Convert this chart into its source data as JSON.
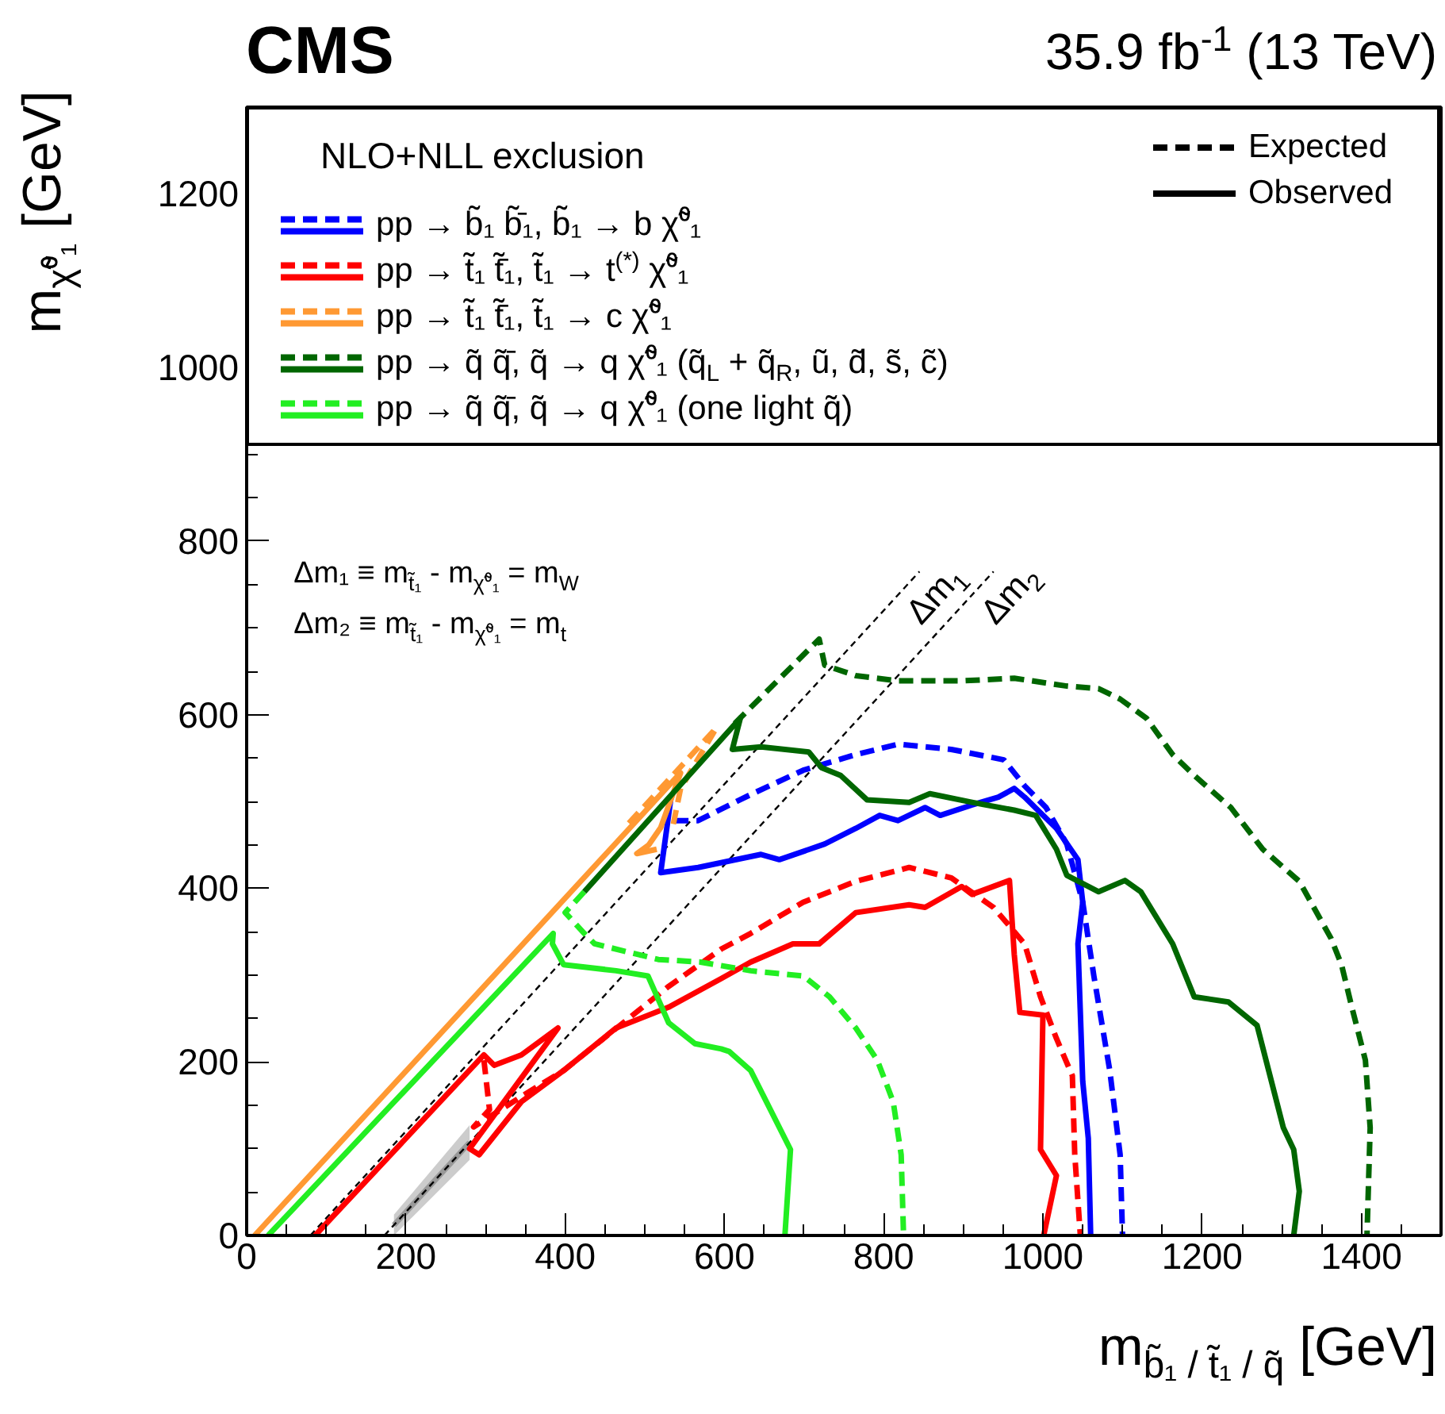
{
  "chart_data": {
    "type": "line",
    "title": "CMS",
    "subtitle": "35.9 fb$^{-1}$ (13 TeV)",
    "xlabel": "m$_{b̃₁ / t̃₁ / q̃}$ [GeV]",
    "ylabel": "m$_{χ̃⁰₁}$ [GeV]",
    "legend_title": "NLO+NLL exclusion",
    "xlim": [
      0,
      1500
    ],
    "ylim": [
      0,
      1300
    ],
    "xticks": [
      0,
      200,
      400,
      600,
      800,
      1000,
      1200,
      1400
    ],
    "yticks": [
      0,
      200,
      400,
      600,
      800,
      1000,
      1200
    ],
    "grid": false,
    "legend": "top",
    "annotations": [
      "Δm₁ ≡ m$_{t̃₁}$ - m$_{χ̃⁰₁}$ = m$_{W}$",
      "Δm₂ ≡ m$_{t̃₁}$ - m$_{χ̃⁰₁}$ = m$_{t}$"
    ],
    "series": [
      {
        "color": "#999999",
        "line_style": "solid",
        "x": [
          185,
          280
        ],
        "values": [
          12,
          107
        ],
        "lower": [
          0,
          87
        ],
        "upper": [
          24,
          127
        ]
      },
      {
        "name": "Δm$_{1}$",
        "color": "#000000",
        "line_style": "dotted",
        "x": [
          80,
          845
        ],
        "values": [
          0,
          765
        ]
      },
      {
        "name": "Δm$_{2}$",
        "color": "#000000",
        "line_style": "dotted",
        "x": [
          173,
          938
        ],
        "values": [
          0,
          765
        ]
      },
      {
        "name": "Expected",
        "color": "#000000",
        "line_style": "dashed"
      },
      {
        "name": "Observed",
        "color": "#000000",
        "line_style": "solid"
      },
      {
        "color": "#0000ff",
        "line_style": "dashed",
        "x": [
          537,
          567,
          633,
          699,
          765,
          818,
          885,
          951,
          977,
          1004,
          1030,
          1050,
          1064,
          1084,
          1097,
          1100
        ],
        "values": [
          478,
          478,
          508,
          536,
          554,
          566,
          560,
          548,
          518,
          493,
          451,
          384,
          299,
          190,
          93,
          0
        ]
      },
      {
        "name": "pp → b̃₁ b̃̄₁, b̃₁ → b χ̃⁰₁",
        "color": "#0000ff",
        "line_style": "solid",
        "x": [
          533,
          520,
          567,
          646,
          669,
          726,
          765,
          795,
          818,
          852,
          871,
          911,
          944,
          964,
          977,
          1017,
          1044,
          1050,
          1044,
          1050,
          1057,
          1060
        ],
        "values": [
          505,
          418,
          424,
          439,
          433,
          451,
          469,
          484,
          478,
          493,
          484,
          496,
          505,
          515,
          505,
          469,
          433,
          384,
          336,
          178,
          112,
          0
        ]
      },
      {
        "color": "#ff0000",
        "line_style": "dashed",
        "x": [
          298,
          305,
          285,
          345,
          398,
          530,
          596,
          633,
          699,
          765,
          832,
          885,
          938,
          977,
          997,
          1017,
          1037,
          1040,
          1047
        ],
        "values": [
          202,
          145,
          125,
          160,
          190,
          287,
          330,
          348,
          384,
          408,
          424,
          412,
          378,
          336,
          275,
          227,
          184,
          93,
          0
        ]
      },
      {
        "name": "pp → t̃₁ t̃̄₁, t̃₁ → t$^{(*)}$ χ̃⁰₁",
        "color": "#ff0000",
        "line_style": "solid",
        "x": [
          86,
          298,
          311,
          345,
          391,
          280,
          292,
          345,
          398,
          464,
          530,
          596,
          633,
          686,
          719,
          765,
          832,
          852,
          898,
          911,
          958,
          964,
          971,
          1000,
          997,
          1017,
          1001
        ],
        "values": [
          0,
          208,
          196,
          208,
          239,
          100,
          93,
          154,
          190,
          239,
          263,
          296,
          315,
          336,
          336,
          372,
          381,
          378,
          402,
          393,
          409,
          324,
          257,
          254,
          99,
          69,
          0
        ]
      },
      {
        "color": "#ff9933",
        "line_style": "dashed",
        "x": [
          480,
          590,
          545,
          535
        ],
        "values": [
          475,
          585,
          515,
          470
        ]
      },
      {
        "name": "pp → t̃₁ t̃̄₁, t̃₁ → c χ̃⁰₁",
        "color": "#ff9933",
        "line_style": "solid",
        "x": [
          10,
          545,
          520,
          505,
          490,
          515
        ],
        "values": [
          0,
          533,
          470,
          450,
          440,
          445
        ]
      },
      {
        "color": "#006600",
        "line_style": "dashed",
        "x": [
          613,
          719,
          726,
          765,
          818,
          898,
          964,
          1030,
          1070,
          1097,
          1130,
          1163,
          1190,
          1236,
          1276,
          1322,
          1362,
          1375,
          1388,
          1405,
          1411,
          1407
        ],
        "values": [
          590,
          687,
          657,
          645,
          639,
          639,
          642,
          633,
          630,
          618,
          596,
          554,
          530,
          493,
          445,
          408,
          342,
          312,
          263,
          202,
          124,
          0
        ]
      },
      {
        "name": "pp → q̃ q̃̄, q̃ → q χ̃⁰₁ (q̃$_{L}$ + q̃$_{R}$, ũ, d̃, s̃, c̃)",
        "color": "#006600",
        "line_style": "solid",
        "x": [
          424,
          620,
          610,
          646,
          706,
          722,
          746,
          779,
          832,
          858,
          911,
          964,
          991,
          1017,
          1030,
          1070,
          1103,
          1123,
          1163,
          1190,
          1233,
          1269,
          1302,
          1315,
          1322,
          1315
        ],
        "values": [
          396,
          596,
          560,
          563,
          557,
          539,
          530,
          502,
          499,
          509,
          499,
          490,
          484,
          445,
          415,
          396,
          409,
          396,
          336,
          275,
          269,
          242,
          124,
          99,
          51,
          0
        ]
      },
      {
        "color": "#22ee22",
        "line_style": "dashed",
        "x": [
          424,
          400,
          424,
          437,
          517,
          570,
          633,
          699,
          732,
          765,
          792,
          812,
          822,
          825
        ],
        "values": [
          396,
          372,
          348,
          336,
          318,
          315,
          305,
          299,
          275,
          239,
          202,
          154,
          93,
          0
        ]
      },
      {
        "name": "pp → q̃ q̃̄, q̃ → q χ̃⁰₁ (one light q̃)",
        "color": "#22ee22",
        "line_style": "solid",
        "x": [
          27,
          385,
          384,
          398,
          464,
          504,
          530,
          563,
          596,
          606,
          633,
          683,
          676
        ],
        "values": [
          0,
          348,
          336,
          312,
          305,
          299,
          245,
          221,
          215,
          212,
          190,
          99,
          0
        ]
      }
    ]
  }
}
